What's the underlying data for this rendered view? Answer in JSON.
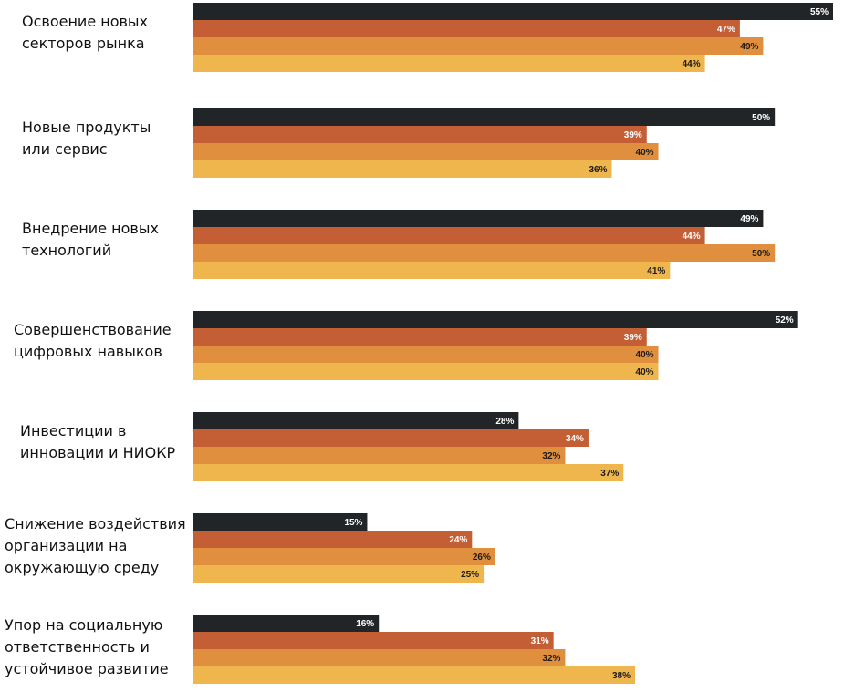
{
  "chart_data": {
    "type": "bar",
    "orientation": "horizontal",
    "title": "",
    "xlabel": "",
    "ylabel": "",
    "xlim": [
      0,
      55
    ],
    "grid": false,
    "legend": "none",
    "value_suffix": "%",
    "categories": [
      [
        "Освоение новых",
        "секторов рынка"
      ],
      [
        "Новые продукты",
        "или сервис"
      ],
      [
        "Внедрение новых",
        "технологий"
      ],
      [
        "Совершенствование",
        "цифровых навыков"
      ],
      [
        "Инвестиции в",
        "инновации и НИОКР"
      ],
      [
        "Снижение воздействия",
        "организации на",
        "окружающую среду"
      ],
      [
        "Упор на социальную",
        "ответственность и",
        "устойчивое развитие"
      ]
    ],
    "series": [
      {
        "name": "series-1",
        "color": "#222528",
        "label_color": "#ffffff",
        "values": [
          55,
          50,
          49,
          52,
          28,
          15,
          16
        ]
      },
      {
        "name": "series-2",
        "color": "#c45e35",
        "label_color": "#ffffff",
        "values": [
          47,
          39,
          44,
          39,
          34,
          24,
          31
        ]
      },
      {
        "name": "series-3",
        "color": "#df8f3d",
        "label_color": "#1a1a1a",
        "values": [
          49,
          40,
          50,
          40,
          32,
          26,
          32
        ]
      },
      {
        "name": "series-4",
        "color": "#f0b64e",
        "label_color": "#1a1a1a",
        "values": [
          44,
          36,
          41,
          40,
          37,
          25,
          38
        ]
      }
    ]
  }
}
